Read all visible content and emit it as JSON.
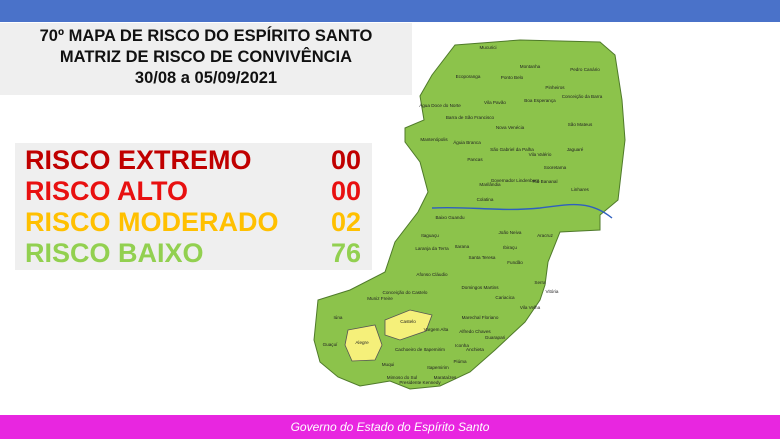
{
  "header": {
    "title_lines": [
      "70º MAPA DE RISCO DO ESPÍRITO SANTO",
      "MATRIZ DE RISCO DE CONVIVÊNCIA",
      "30/08 a 05/09/2021"
    ]
  },
  "risk_levels": [
    {
      "label": "RISCO EXTREMO",
      "count": "00",
      "color": "#c00000"
    },
    {
      "label": "RISCO ALTO",
      "count": "00",
      "color": "#e81010"
    },
    {
      "label": "RISCO MODERADO",
      "count": "02",
      "color": "#ffc000"
    },
    {
      "label": "RISCO BAIXO",
      "count": "76",
      "color": "#92d050"
    }
  ],
  "map": {
    "low_color": "#8cc34b",
    "moderate_color": "#f5f07a",
    "labels": [
      "Mucurici",
      "Montanha",
      "Ponto Belo",
      "Pedro Canário",
      "Ecoporanga",
      "Pinheiros",
      "Conceição da Barra",
      "Boa Esperança",
      "Vila Pavão",
      "Barra de São Francisco",
      "Água Doce do Norte",
      "São Mateus",
      "Nova Venécia",
      "Mantenópolis",
      "Águia Branca",
      "São Gabriel da Palha",
      "Vila Valério",
      "Jaguaré",
      "Pancas",
      "Sooretama",
      "Governador Lindenberg",
      "Rio Bananal",
      "Marilândia",
      "Linhares",
      "Colatina",
      "Baixo Guandu",
      "Itaguaçu",
      "Laranja da Terra",
      "João Neiva",
      "Aracruz",
      "Ibiraçu",
      "Santa Teresa",
      "Fundão",
      "Afonso Cláudio",
      "Itarana",
      "Serra",
      "Vitória",
      "Vila Velha",
      "Cariacica",
      "Domingos Martins",
      "Marechal Floriano",
      "Guarapari",
      "Alfredo Chaves",
      "Anchieta",
      "Iúna",
      "Muniz Freire",
      "Conceição do Castelo",
      "Castelo",
      "Alegre",
      "Guaçuí",
      "Cachoeiro de Itapemirim",
      "Vargem Alta",
      "Muqui",
      "Mimoso do Sul",
      "Presidente Kennedy",
      "Itapemirim",
      "Marataízes",
      "Piúma",
      "Iconha"
    ],
    "moderate": [
      "Castelo",
      "Alegre"
    ]
  },
  "footer": "Governo do Estado do Espírito Santo"
}
